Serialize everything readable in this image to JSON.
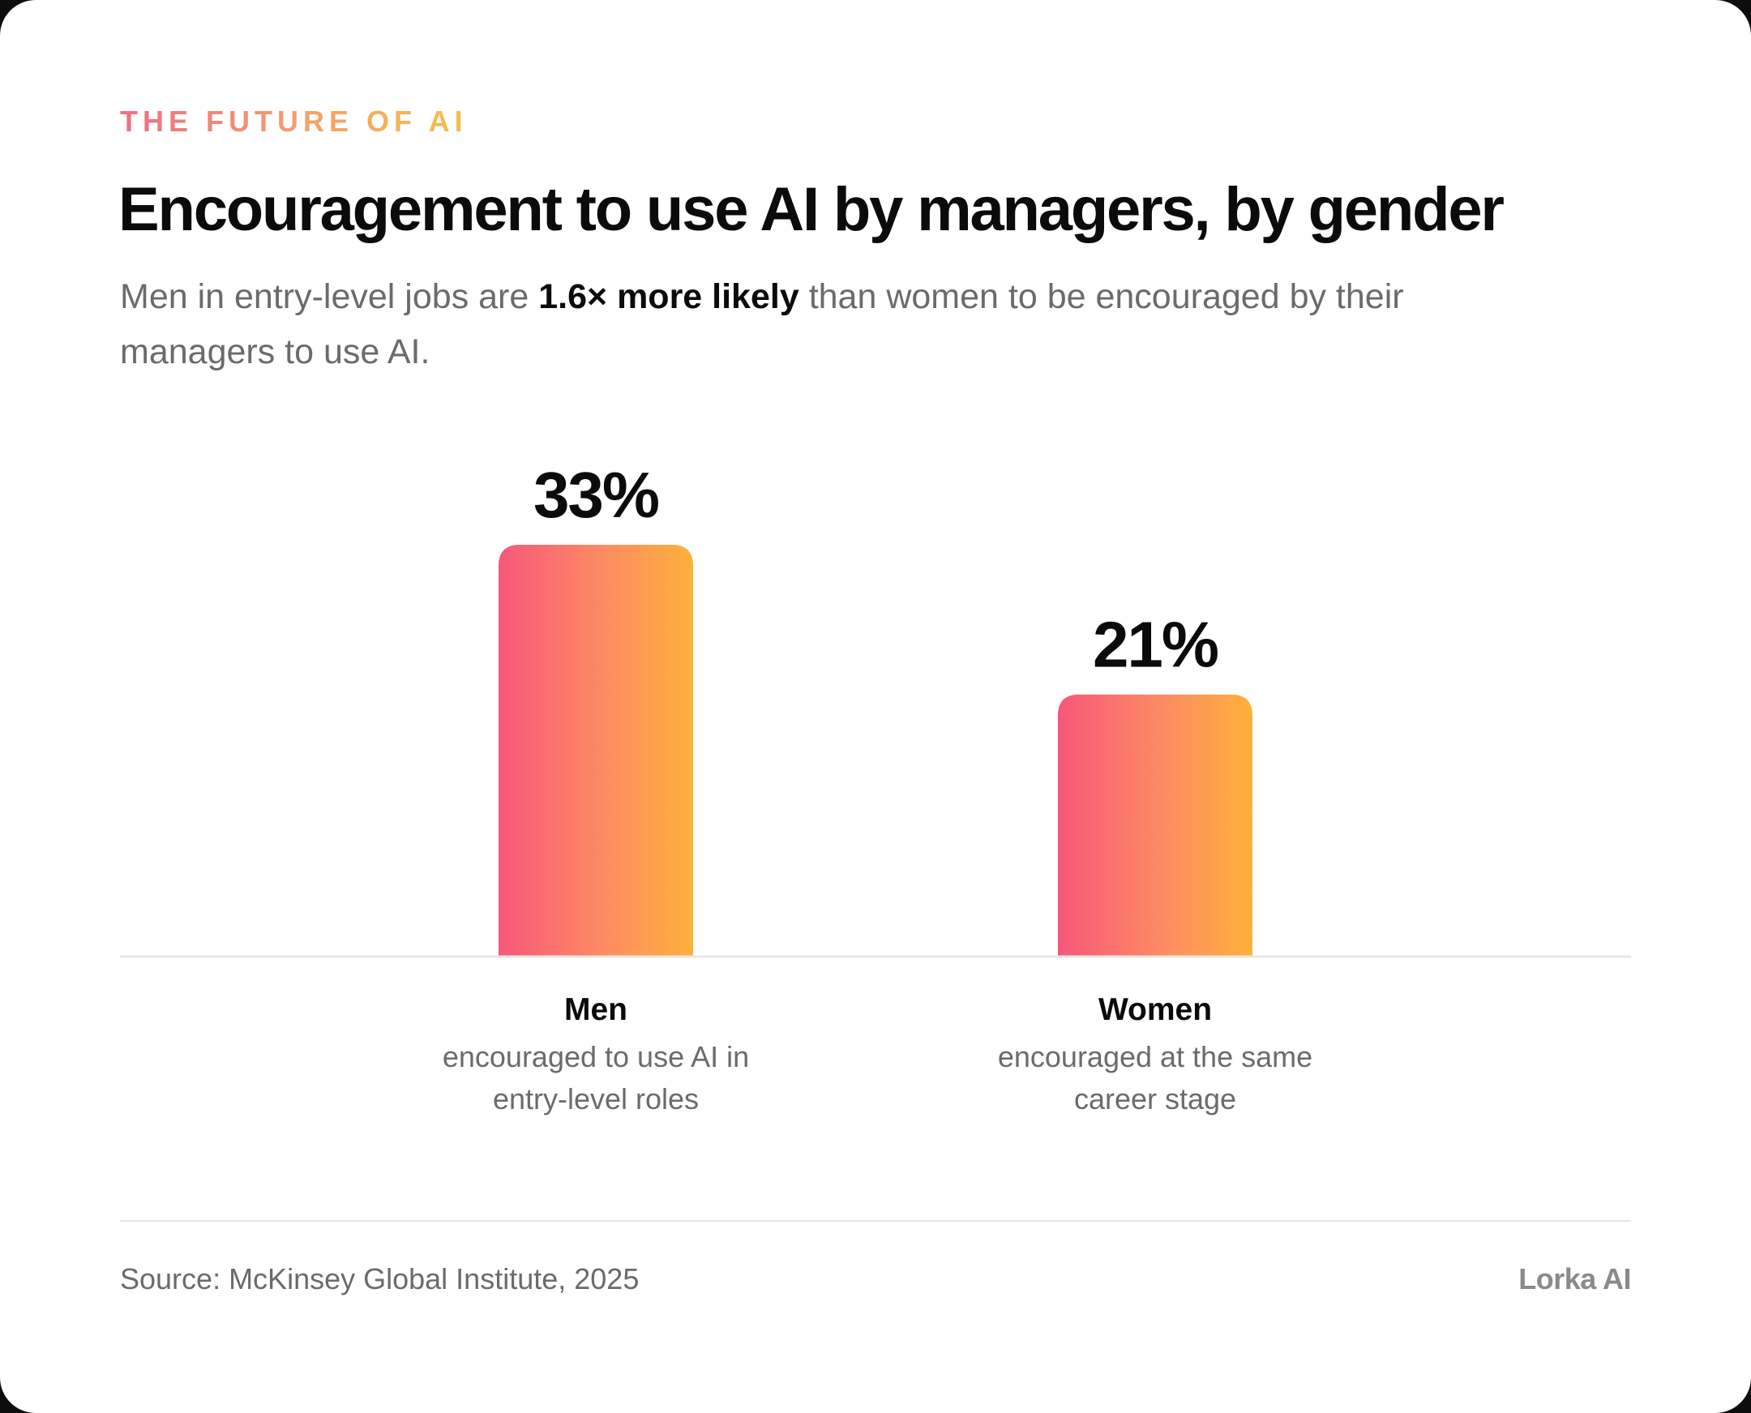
{
  "eyebrow": "THE FUTURE OF AI",
  "title": "Encouragement to use AI by managers, by gender",
  "subtitle": {
    "before": "Men in entry-level jobs are ",
    "highlight": "1.6× more likely",
    "after": " than women to be encouraged by their managers to use AI."
  },
  "chart_data": {
    "type": "bar",
    "title": "Encouragement to use AI by managers, by gender",
    "categories": [
      "Men",
      "Women"
    ],
    "descriptions": [
      "encouraged to use AI in entry-level roles",
      "encouraged at the same career stage"
    ],
    "values": [
      33,
      21
    ],
    "data_labels": [
      "33%",
      "21%"
    ],
    "unit": "%",
    "ylim": [
      0,
      33
    ],
    "grid": false,
    "legend": "none",
    "bar_gradient": [
      "#f7577a",
      "#fd8c63",
      "#fdb13a"
    ]
  },
  "footer": {
    "source": "Source: McKinsey Global Institute, 2025",
    "brand": "Lorka AI"
  },
  "colors": {
    "title": "#0b0b0b",
    "muted": "#6b6b6b",
    "baseline": "#e6e6e6"
  }
}
